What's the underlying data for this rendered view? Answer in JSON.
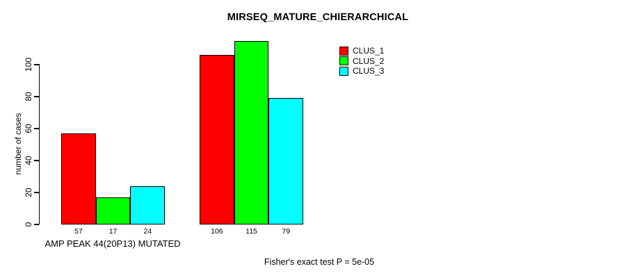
{
  "chart_data": {
    "type": "bar",
    "title": "MIRSEQ_MATURE_CHIERARCHICAL",
    "ylabel": "number of cases",
    "xlabel": "",
    "categories": [
      "AMP PEAK 44(20P13) MUTATED",
      ""
    ],
    "group_label": "AMP PEAK 44(20P13) MUTATED",
    "series": [
      {
        "name": "CLUS_1",
        "color": "#ff0000",
        "values": [
          57,
          106
        ]
      },
      {
        "name": "CLUS_2",
        "color": "#00ff00",
        "values": [
          17,
          115
        ]
      },
      {
        "name": "CLUS_3",
        "color": "#00ffff",
        "values": [
          24,
          79
        ]
      }
    ],
    "bar_value_labels": [
      [
        57,
        17,
        24
      ],
      [
        106,
        115,
        79
      ]
    ],
    "yticks": [
      0,
      20,
      40,
      60,
      80,
      100
    ],
    "ylim": [
      0,
      115
    ],
    "grid": false,
    "legend_position": "top-right",
    "annotation": "Fisher's exact test P = 5e-05"
  },
  "colors": {
    "background": "#ffffff",
    "bar_border": "#000000",
    "axis": "#000000",
    "text": "#000000"
  }
}
